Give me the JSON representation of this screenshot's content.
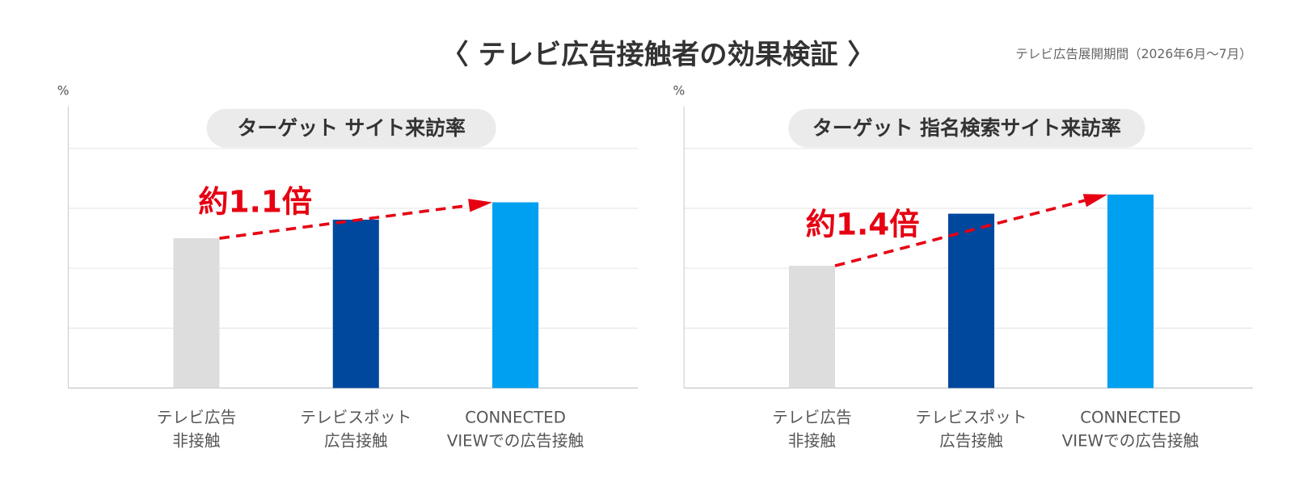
{
  "title": "〈 テレビ広告接触者の効果検証 〉",
  "period": "テレビ広告展開期間（2026年6月〜7月）",
  "chart_data": [
    {
      "type": "bar",
      "y_unit": "%",
      "subtitle": "ターゲット サイト来訪率",
      "categories": [
        [
          "テレビ広告",
          "非接触"
        ],
        [
          "テレビスポット",
          "広告接触"
        ],
        [
          "CONNECTED",
          "VIEWでの広告接触"
        ]
      ],
      "values": [
        2.5,
        2.81,
        3.1
      ],
      "colors": [
        "#dddddd",
        "#00489e",
        "#00a0f0"
      ],
      "annotation": "約1.1倍",
      "ylim": [
        0,
        4.7
      ],
      "yticks": [
        0,
        1,
        2,
        3,
        4
      ],
      "grid": true
    },
    {
      "type": "bar",
      "y_unit": "%",
      "subtitle": "ターゲット 指名検索サイト来訪率",
      "categories": [
        [
          "テレビ広告",
          "非接触"
        ],
        [
          "テレビスポット",
          "広告接触"
        ],
        [
          "CONNECTED",
          "VIEWでの広告接触"
        ]
      ],
      "values": [
        2.04,
        2.91,
        3.23
      ],
      "colors": [
        "#dddddd",
        "#00489e",
        "#00a0f0"
      ],
      "annotation": "約1.4倍",
      "ylim": [
        0,
        4.7
      ],
      "yticks": [
        0,
        1,
        2,
        3,
        4
      ],
      "grid": true
    }
  ]
}
